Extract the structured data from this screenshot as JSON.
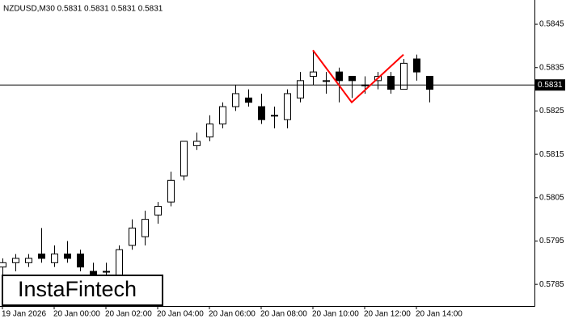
{
  "chart_data": {
    "type": "candlestick",
    "title": "NZDUSD,M30  0.5831 0.5831 0.5831 0.5831",
    "brand": "InstaFintech",
    "categories": [
      "19 Jan 2026",
      null,
      null,
      null,
      "20 Jan 00:00",
      null,
      null,
      null,
      "20 Jan 02:00",
      null,
      null,
      null,
      "20 Jan 04:00",
      null,
      null,
      null,
      "20 Jan 06:00",
      null,
      null,
      null,
      "20 Jan 08:00",
      null,
      null,
      null,
      "20 Jan 10:00",
      null,
      null,
      null,
      "20 Jan 12:00",
      null,
      null,
      null,
      "20 Jan 14:00",
      null
    ],
    "open": [
      0.5789,
      0.579,
      0.579,
      0.5792,
      0.579,
      0.5792,
      0.5792,
      0.5788,
      0.5788,
      0.5785,
      0.5794,
      0.5796,
      0.5801,
      0.5804,
      0.581,
      0.5817,
      0.5819,
      0.5822,
      0.5826,
      0.5828,
      0.5826,
      0.5824,
      0.5823,
      0.5828,
      0.5833,
      0.5832,
      0.5834,
      0.5833,
      0.5831,
      0.5832,
      0.5833,
      0.583,
      0.5837,
      0.5833
    ],
    "high": [
      0.5791,
      0.5792,
      0.5792,
      0.5798,
      0.5794,
      0.5795,
      0.5793,
      0.579,
      0.579,
      0.5794,
      0.58,
      0.5802,
      0.5804,
      0.5811,
      0.5818,
      0.582,
      0.5824,
      0.5827,
      0.5831,
      0.583,
      0.5829,
      0.5826,
      0.583,
      0.5834,
      0.5839,
      0.5834,
      0.5835,
      0.5833,
      0.5833,
      0.5834,
      0.5834,
      0.5837,
      0.5838,
      0.5833
    ],
    "low": [
      0.5786,
      0.5788,
      0.5789,
      0.579,
      0.5789,
      0.579,
      0.5788,
      0.5786,
      0.5786,
      0.5784,
      0.5793,
      0.5794,
      0.5799,
      0.5803,
      0.5809,
      0.5816,
      0.5818,
      0.5821,
      0.5825,
      0.5826,
      0.5822,
      0.5821,
      0.5821,
      0.5827,
      0.5831,
      0.5829,
      0.5827,
      0.5828,
      0.5829,
      0.583,
      0.5829,
      0.583,
      0.5832,
      0.5827
    ],
    "close": [
      0.579,
      0.5791,
      0.5791,
      0.5791,
      0.5792,
      0.5791,
      0.5789,
      0.5787,
      0.5788,
      0.5793,
      0.5798,
      0.58,
      0.5803,
      0.5809,
      0.5818,
      0.5818,
      0.5822,
      0.5826,
      0.5829,
      0.5827,
      0.5823,
      0.5824,
      0.5829,
      0.5832,
      0.5834,
      0.5832,
      0.5832,
      0.5832,
      0.5831,
      0.5833,
      0.583,
      0.5836,
      0.5834,
      0.583
    ],
    "up_color": "#ffffff",
    "down_color": "#000000",
    "last_price": 0.5831,
    "pattern": {
      "color": "#ff0000",
      "x": [
        24,
        27,
        31
      ],
      "values": [
        0.5839,
        0.5827,
        0.5838
      ]
    },
    "ylim": [
      0.578,
      0.58506
    ],
    "yticks": [
      0.5785,
      0.5795,
      0.5805,
      0.5815,
      0.5825,
      0.5835,
      0.5845
    ]
  }
}
